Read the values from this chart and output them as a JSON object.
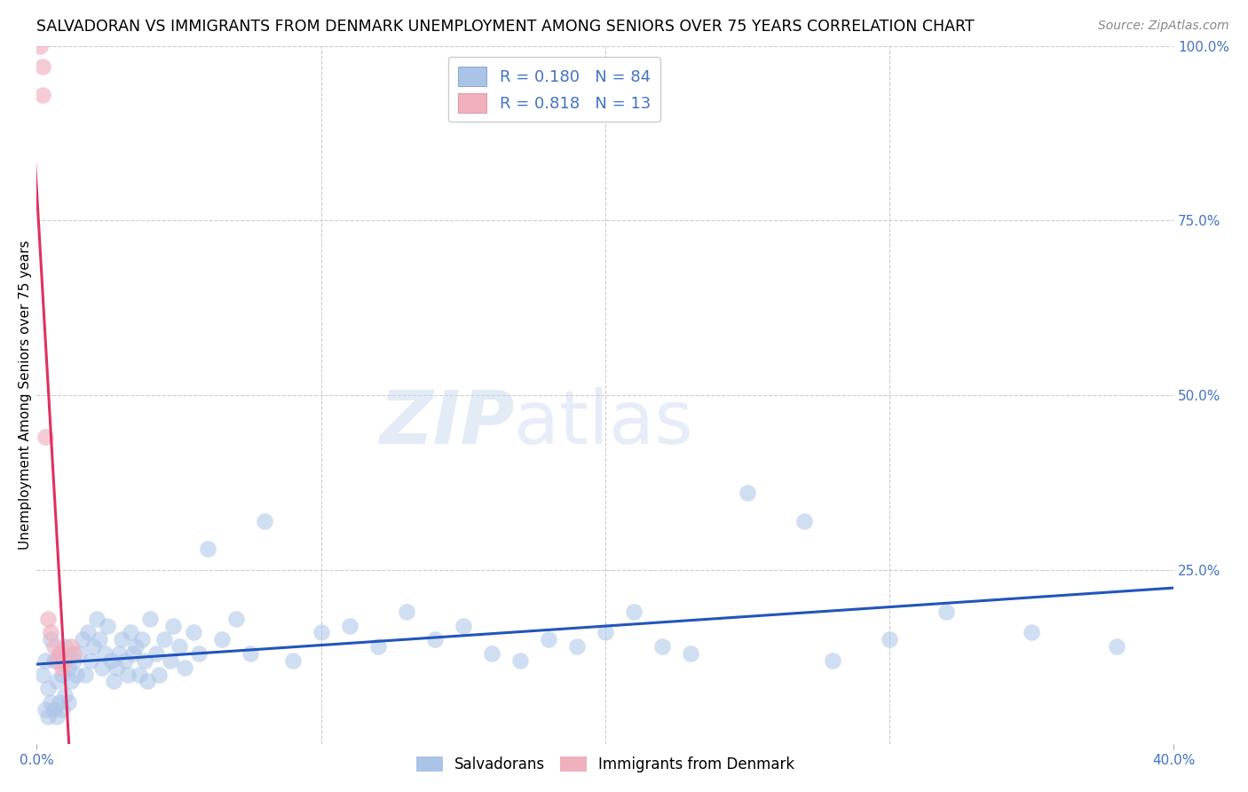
{
  "title": "SALVADORAN VS IMMIGRANTS FROM DENMARK UNEMPLOYMENT AMONG SENIORS OVER 75 YEARS CORRELATION CHART",
  "source": "Source: ZipAtlas.com",
  "ylabel": "Unemployment Among Seniors over 75 years",
  "xlim": [
    0.0,
    0.4
  ],
  "ylim": [
    0.0,
    1.0
  ],
  "blue_R": 0.18,
  "blue_N": 84,
  "pink_R": 0.818,
  "pink_N": 13,
  "blue_color": "#aac4e8",
  "pink_color": "#f0b0be",
  "blue_line_color": "#2255bb",
  "pink_line_color": "#e03060",
  "legend_blue_label": "Salvadorans",
  "legend_pink_label": "Immigrants from Denmark",
  "watermark_zip": "ZIP",
  "watermark_atlas": "atlas",
  "blue_scatter_x": [
    0.002,
    0.003,
    0.004,
    0.005,
    0.006,
    0.007,
    0.008,
    0.009,
    0.01,
    0.011,
    0.012,
    0.013,
    0.014,
    0.015,
    0.016,
    0.017,
    0.018,
    0.019,
    0.02,
    0.021,
    0.022,
    0.023,
    0.024,
    0.025,
    0.026,
    0.027,
    0.028,
    0.029,
    0.03,
    0.031,
    0.032,
    0.033,
    0.034,
    0.035,
    0.036,
    0.037,
    0.038,
    0.039,
    0.04,
    0.042,
    0.043,
    0.045,
    0.047,
    0.048,
    0.05,
    0.052,
    0.055,
    0.057,
    0.06,
    0.065,
    0.07,
    0.075,
    0.08,
    0.09,
    0.1,
    0.11,
    0.12,
    0.13,
    0.14,
    0.15,
    0.16,
    0.17,
    0.18,
    0.19,
    0.2,
    0.21,
    0.22,
    0.23,
    0.25,
    0.27,
    0.28,
    0.3,
    0.32,
    0.35,
    0.38,
    0.003,
    0.004,
    0.005,
    0.006,
    0.007,
    0.008,
    0.009,
    0.01,
    0.011
  ],
  "blue_scatter_y": [
    0.1,
    0.12,
    0.08,
    0.15,
    0.12,
    0.09,
    0.13,
    0.1,
    0.14,
    0.11,
    0.09,
    0.12,
    0.1,
    0.13,
    0.15,
    0.1,
    0.16,
    0.12,
    0.14,
    0.18,
    0.15,
    0.11,
    0.13,
    0.17,
    0.12,
    0.09,
    0.11,
    0.13,
    0.15,
    0.12,
    0.1,
    0.16,
    0.13,
    0.14,
    0.1,
    0.15,
    0.12,
    0.09,
    0.18,
    0.13,
    0.1,
    0.15,
    0.12,
    0.17,
    0.14,
    0.11,
    0.16,
    0.13,
    0.28,
    0.15,
    0.18,
    0.13,
    0.32,
    0.12,
    0.16,
    0.17,
    0.14,
    0.19,
    0.15,
    0.17,
    0.13,
    0.12,
    0.15,
    0.14,
    0.16,
    0.19,
    0.14,
    0.13,
    0.36,
    0.32,
    0.12,
    0.15,
    0.19,
    0.16,
    0.14,
    0.05,
    0.04,
    0.06,
    0.05,
    0.04,
    0.06,
    0.05,
    0.07,
    0.06
  ],
  "pink_scatter_x": [
    0.001,
    0.002,
    0.002,
    0.003,
    0.004,
    0.005,
    0.006,
    0.007,
    0.008,
    0.009,
    0.01,
    0.012,
    0.013
  ],
  "pink_scatter_y": [
    1.0,
    0.97,
    0.93,
    0.44,
    0.18,
    0.16,
    0.14,
    0.12,
    0.13,
    0.11,
    0.12,
    0.14,
    0.13
  ],
  "grid_color": "#cccccc",
  "title_fontsize": 12.5,
  "label_fontsize": 11,
  "tick_fontsize": 11,
  "watermark_fontsize_zip": 60,
  "watermark_fontsize_atlas": 60,
  "watermark_color_zip": "#c8d8f0",
  "watermark_color_atlas": "#c8d8f0",
  "right_tick_color": "#4472c4"
}
